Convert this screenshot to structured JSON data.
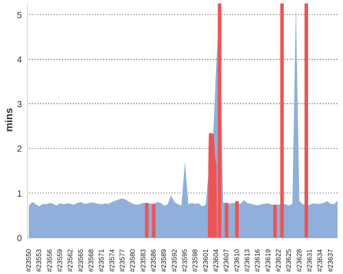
{
  "chart_data": {
    "type": "area",
    "title": "",
    "xlabel": "",
    "ylabel": "mins",
    "ylim": [
      0,
      5.25
    ],
    "yticks": [
      0,
      1,
      2,
      3,
      4,
      5
    ],
    "grid": true,
    "x_first_build": 23550,
    "x_last_build": 23639,
    "x_tick_labels": [
      "#23550",
      "#23553",
      "#23556",
      "#23559",
      "#23562",
      "#23565",
      "#23568",
      "#23571",
      "#23574",
      "#23577",
      "#23580",
      "#23583",
      "#23586",
      "#23589",
      "#23592",
      "#23595",
      "#23598",
      "#23601",
      "#23604",
      "#23607",
      "#23610",
      "#23613",
      "#23616",
      "#23619",
      "#23622",
      "#23625",
      "#23628",
      "#23631",
      "#23634",
      "#23637"
    ],
    "series": [
      {
        "color": "#8eb0da",
        "values": [
          0.72,
          0.8,
          0.75,
          0.7,
          0.76,
          0.75,
          0.78,
          0.76,
          0.72,
          0.77,
          0.75,
          0.77,
          0.76,
          0.74,
          0.78,
          0.8,
          0.76,
          0.77,
          0.79,
          0.78,
          0.76,
          0.75,
          0.77,
          0.76,
          0.8,
          0.83,
          0.86,
          0.88,
          0.85,
          0.8,
          0.76,
          0.74,
          0.75,
          0.78,
          0.76,
          0.77,
          0.75,
          0.8,
          0.78,
          0.72,
          0.74,
          0.95,
          0.8,
          0.75,
          0.72,
          1.7,
          0.75,
          0.78,
          0.76,
          0.77,
          0.7,
          0.74,
          1.6,
          2.0,
          3.8,
          5.25,
          0.8,
          0.75,
          0.77,
          0.78,
          0.77,
          0.76,
          0.84,
          0.78,
          0.76,
          0.74,
          0.72,
          0.75,
          0.76,
          0.77,
          0.74,
          0.73,
          0.74,
          0.76,
          0.75,
          0.72,
          0.76,
          5.25,
          0.82,
          0.75,
          0.72,
          0.74,
          0.77,
          0.76,
          0.76,
          0.78,
          0.82,
          0.76,
          0.75,
          0.83
        ]
      },
      {
        "color": "#ec5454",
        "values": [
          0,
          0,
          0,
          0,
          0,
          0,
          0,
          0,
          0,
          0,
          0,
          0,
          0,
          0,
          0,
          0,
          0,
          0,
          0,
          0,
          0,
          0,
          0,
          0,
          0,
          0,
          0,
          0,
          0,
          0,
          0,
          0,
          0,
          0,
          0,
          0,
          0,
          0,
          0,
          0,
          0,
          0,
          0,
          0,
          0,
          0,
          0,
          0,
          0,
          0,
          0,
          0,
          0,
          0,
          0,
          0,
          0,
          0,
          0,
          0,
          0,
          0,
          0,
          0,
          0,
          0,
          0,
          0,
          0,
          0,
          0,
          0,
          0,
          0,
          0,
          0,
          0,
          0,
          0,
          0,
          0,
          0,
          0,
          0,
          0,
          0,
          0,
          0,
          0,
          0
        ],
        "failed_builds": [
          {
            "build": 23584,
            "value": 0.78
          },
          {
            "build": 23586,
            "value": 0.76
          },
          {
            "build": 23602,
            "value": 2.35
          },
          {
            "build": 23603,
            "value": 2.33
          },
          {
            "build": 23604,
            "value": 1.7
          },
          {
            "build": 23605,
            "value": 5.25
          },
          {
            "build": 23607,
            "value": 0.78
          },
          {
            "build": 23610,
            "value": 0.82
          },
          {
            "build": 23621,
            "value": 0.74
          },
          {
            "build": 23623,
            "value": 5.25
          },
          {
            "build": 23630,
            "value": 5.25
          }
        ]
      }
    ]
  }
}
